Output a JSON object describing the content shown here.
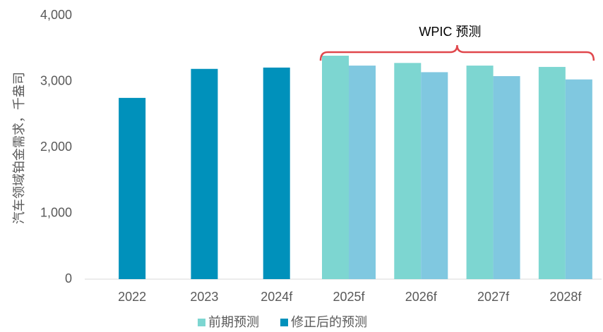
{
  "chart_data": {
    "type": "bar",
    "y_label": "汽车领域铂金需求，千盎司",
    "annotation": "WPIC 预测",
    "annotation_color": "#e0474c",
    "categories": [
      "2022",
      "2023",
      "2024f",
      "2025f",
      "2026f",
      "2027f",
      "2028f"
    ],
    "series": [
      {
        "name": "前期预测",
        "color": "#7dd6d1",
        "values": [
          null,
          null,
          null,
          3390,
          3280,
          3240,
          3220
        ]
      },
      {
        "name": "修正后的预测",
        "color": "#0091bb",
        "point_colors": [
          "#0091bb",
          "#0091bb",
          "#0091bb",
          "#80c8e0",
          "#80c8e0",
          "#80c8e0",
          "#80c8e0"
        ],
        "values": [
          2750,
          3190,
          3210,
          3240,
          3140,
          3080,
          3030
        ]
      }
    ],
    "ylim": [
      0,
      4000
    ],
    "yticks": [
      0,
      {
        "value": 1000,
        "label": "1,000"
      },
      {
        "value": 2000,
        "label": "2,000"
      },
      {
        "value": 3000,
        "label": "3,000"
      },
      {
        "value": 4000,
        "label": "4,000"
      }
    ],
    "grid": false,
    "legend": "bottom"
  }
}
